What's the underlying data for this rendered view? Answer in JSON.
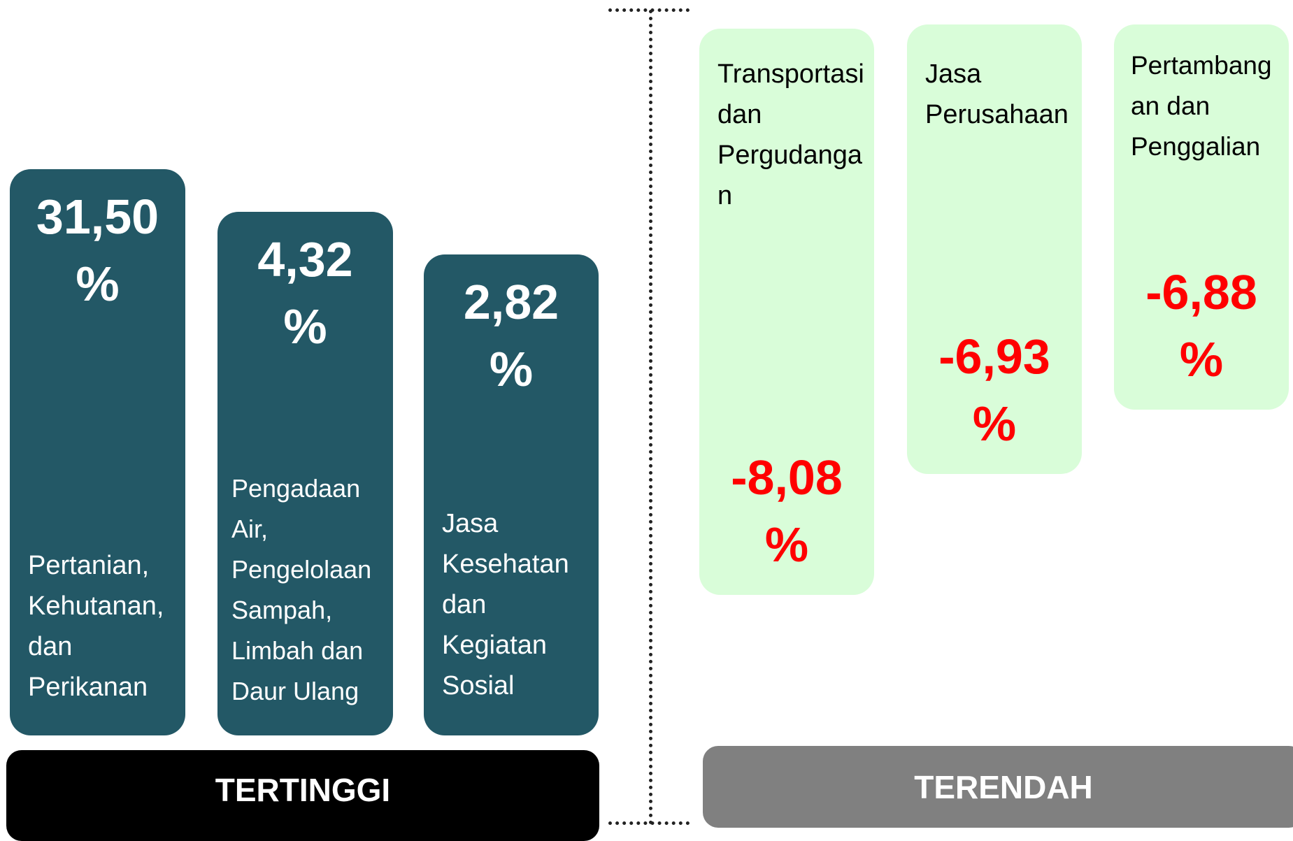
{
  "highest": {
    "title": "TERTINGGI",
    "items": [
      {
        "value": "31,50 %",
        "name": "Pertanian, Kehutanan, dan Perikanan"
      },
      {
        "value": "4,32 %",
        "name": "Pengadaan Air, Pengelolaan Sampah, Limbah dan Daur Ulang"
      },
      {
        "value": "2,82 %",
        "name": "Jasa Kesehatan dan Kegiatan Sosial"
      }
    ]
  },
  "lowest": {
    "title": "TERENDAH",
    "items": [
      {
        "value": "-8,08 %",
        "name": "Transportasi dan Pergudangan"
      },
      {
        "value": "-6,93 %",
        "name": "Jasa Perusahaan"
      },
      {
        "value": "-6,88 %",
        "name": "Pertambangan dan Penggalian"
      }
    ]
  }
}
